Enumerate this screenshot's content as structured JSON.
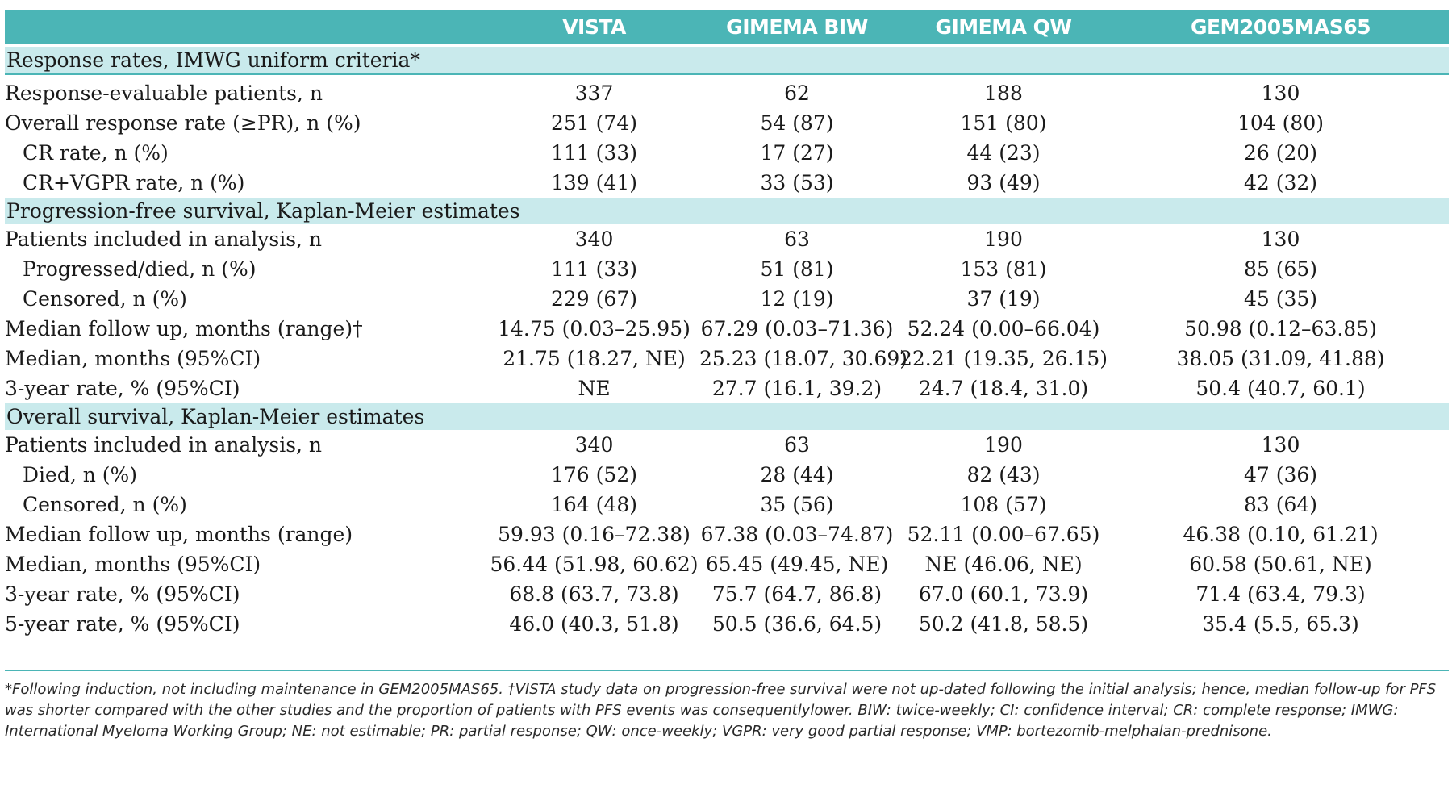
{
  "header": {
    "columns": [
      "",
      "VISTA",
      "GIMEMA BIW",
      "GIMEMA QW",
      "GEM2005MAS65"
    ]
  },
  "sections": [
    {
      "title": "Response rates, IMWG uniform criteria*",
      "rows": [
        {
          "label": "Response-evaluable patients, n",
          "values": [
            "337",
            "62",
            "188",
            "130"
          ]
        },
        {
          "label": "Overall response rate (≥PR), n (%)",
          "values": [
            "251 (74)",
            "54 (87)",
            "151 (80)",
            "104 (80)"
          ]
        },
        {
          "label": "CR rate, n (%)",
          "values": [
            "111 (33)",
            "17 (27)",
            "44 (23)",
            "26 (20)"
          ]
        },
        {
          "label": "CR+VGPR rate, n (%)",
          "values": [
            "139 (41)",
            "33 (53)",
            "93 (49)",
            "42 (32)"
          ]
        }
      ]
    },
    {
      "title": "Progression-free survival, Kaplan-Meier estimates",
      "rows": [
        {
          "label": "Patients included in analysis, n",
          "values": [
            "340",
            "63",
            "190",
            "130"
          ]
        },
        {
          "label": "Progressed/died, n (%)",
          "values": [
            "111 (33)",
            "51 (81)",
            "153 (81)",
            "85 (65)"
          ]
        },
        {
          "label": "Censored, n (%)",
          "values": [
            "229 (67)",
            "12 (19)",
            "37 (19)",
            "45 (35)"
          ]
        },
        {
          "label": "Median follow up, months (range)†",
          "values": [
            "14.75 (0.03–25.95)",
            "67.29 (0.03–71.36)",
            "52.24 (0.00–66.04)",
            "50.98 (0.12–63.85)"
          ]
        },
        {
          "label": "Median, months (95%CI)",
          "values": [
            "21.75 (18.27, NE)",
            "25.23 (18.07, 30.69)",
            "22.21 (19.35, 26.15)",
            "38.05 (31.09, 41.88)"
          ]
        },
        {
          "label": "3-year rate, % (95%CI)",
          "values": [
            "NE",
            "27.7 (16.1, 39.2)",
            "24.7 (18.4, 31.0)",
            "50.4 (40.7, 60.1)"
          ]
        }
      ]
    },
    {
      "title": "Overall survival, Kaplan-Meier estimates",
      "rows": [
        {
          "label": "Patients included in analysis, n",
          "values": [
            "340",
            "63",
            "190",
            "130"
          ]
        },
        {
          "label": "Died, n (%)",
          "values": [
            "176 (52)",
            "28 (44)",
            "82 (43)",
            "47 (36)"
          ]
        },
        {
          "label": "Censored, n (%)",
          "values": [
            "164 (48)",
            "35 (56)",
            "108 (57)",
            "83 (64)"
          ]
        },
        {
          "label": "Median follow up, months (range)",
          "values": [
            "59.93 (0.16–72.38)",
            "67.38 (0.03–74.87)",
            "52.11 (0.00–67.65)",
            "46.38 (0.10, 61.21)"
          ]
        },
        {
          "label": "Median, months (95%CI)",
          "values": [
            "56.44 (51.98, 60.62)",
            "65.45 (49.45, NE)",
            "NE (46.06, NE)",
            "60.58 (50.61, NE)"
          ]
        },
        {
          "label": "3-year rate, % (95%CI)",
          "values": [
            "68.8 (63.7, 73.8)",
            "75.7 (64.7, 86.8)",
            "67.0 (60.1, 73.9)",
            "71.4 (63.4, 79.3)"
          ]
        },
        {
          "label": "5-year rate, % (95%CI)",
          "values": [
            "46.0 (40.3, 51.8)",
            "50.5 (36.6, 64.5)",
            "50.2 (41.8, 58.5)",
            "35.4 (5.5, 65.3)"
          ]
        }
      ]
    }
  ],
  "footnote": "*Following induction, not including maintenance in GEM2005MAS65. †VISTA study data on progression-free survival were not up-dated following the initial analysis; hence, median follow-up for PFS was shorter compared with the other studies and the proportion of patients with PFS events was consequentlylower. BIW: twice-weekly; CI: confidence interval; CR: complete response; IMWG: International Myeloma Working Group; NE: not estimable; PR: partial response; QW: once-weekly; VGPR: very good partial response; VMP: bortezomib-melphalan-prednisone."
}
